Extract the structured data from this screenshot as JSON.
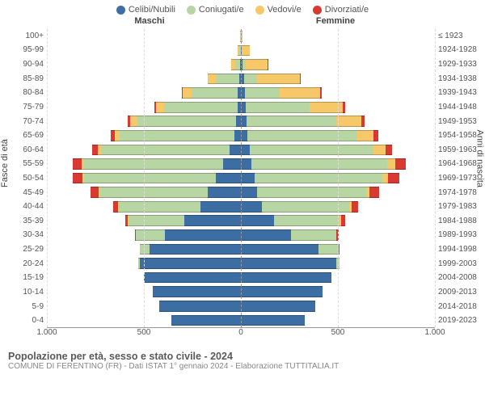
{
  "legend": [
    {
      "label": "Celibi/Nubili",
      "color": "#3d6ea3"
    },
    {
      "label": "Coniugati/e",
      "color": "#b8d6a4"
    },
    {
      "label": "Vedovi/e",
      "color": "#f6c86a"
    },
    {
      "label": "Divorziati/e",
      "color": "#d83a33"
    }
  ],
  "side_labels": {
    "m": "Maschi",
    "f": "Femmine"
  },
  "y_left_title": "Fasce di età",
  "y_right_title": "Anni di nascita",
  "age_groups": [
    "100+",
    "95-99",
    "90-94",
    "85-89",
    "80-84",
    "75-79",
    "70-74",
    "65-69",
    "60-64",
    "55-59",
    "50-54",
    "45-49",
    "40-44",
    "35-39",
    "30-34",
    "25-29",
    "20-24",
    "15-19",
    "10-14",
    "5-9",
    "0-4"
  ],
  "birth_years": [
    "≤ 1923",
    "1924-1928",
    "1929-1933",
    "1934-1938",
    "1939-1943",
    "1944-1948",
    "1949-1953",
    "1954-1958",
    "1959-1963",
    "1964-1968",
    "1969-1973",
    "1974-1978",
    "1979-1983",
    "1984-1988",
    "1989-1993",
    "1994-1998",
    "1999-2003",
    "2004-2008",
    "2009-2013",
    "2014-2018",
    "2019-2023"
  ],
  "x_ticks": [
    "1.000",
    "500",
    "0",
    "500",
    "1.000"
  ],
  "x_max": 1000,
  "colors": {
    "single": "#3d6ea3",
    "married": "#b8d6a4",
    "widowed": "#f6c86a",
    "divorced": "#d83a33",
    "grid": "#dddddd",
    "center": "#999999",
    "bg": "#ffffff"
  },
  "pyramid": [
    {
      "m": {
        "single": 0,
        "married": 0,
        "widowed": 3,
        "divorced": 0
      },
      "f": {
        "single": 2,
        "married": 0,
        "widowed": 8,
        "divorced": 0
      }
    },
    {
      "m": {
        "single": 2,
        "married": 5,
        "widowed": 10,
        "divorced": 0
      },
      "f": {
        "single": 3,
        "married": 3,
        "widowed": 40,
        "divorced": 0
      }
    },
    {
      "m": {
        "single": 5,
        "married": 25,
        "widowed": 20,
        "divorced": 0
      },
      "f": {
        "single": 8,
        "married": 18,
        "widowed": 110,
        "divorced": 2
      }
    },
    {
      "m": {
        "single": 10,
        "married": 120,
        "widowed": 40,
        "divorced": 3
      },
      "f": {
        "single": 15,
        "married": 70,
        "widowed": 220,
        "divorced": 5
      }
    },
    {
      "m": {
        "single": 15,
        "married": 240,
        "widowed": 45,
        "divorced": 5
      },
      "f": {
        "single": 20,
        "married": 180,
        "widowed": 210,
        "divorced": 8
      }
    },
    {
      "m": {
        "single": 18,
        "married": 380,
        "widowed": 40,
        "divorced": 10
      },
      "f": {
        "single": 25,
        "married": 330,
        "widowed": 170,
        "divorced": 12
      }
    },
    {
      "m": {
        "single": 25,
        "married": 510,
        "widowed": 35,
        "divorced": 15
      },
      "f": {
        "single": 30,
        "married": 460,
        "widowed": 130,
        "divorced": 18
      }
    },
    {
      "m": {
        "single": 35,
        "married": 590,
        "widowed": 25,
        "divorced": 20
      },
      "f": {
        "single": 35,
        "married": 560,
        "widowed": 90,
        "divorced": 25
      }
    },
    {
      "m": {
        "single": 60,
        "married": 660,
        "widowed": 18,
        "divorced": 30
      },
      "f": {
        "single": 45,
        "married": 640,
        "widowed": 60,
        "divorced": 35
      }
    },
    {
      "m": {
        "single": 90,
        "married": 720,
        "widowed": 12,
        "divorced": 45
      },
      "f": {
        "single": 55,
        "married": 700,
        "widowed": 40,
        "divorced": 55
      }
    },
    {
      "m": {
        "single": 130,
        "married": 680,
        "widowed": 8,
        "divorced": 50
      },
      "f": {
        "single": 70,
        "married": 660,
        "widowed": 28,
        "divorced": 60
      }
    },
    {
      "m": {
        "single": 170,
        "married": 560,
        "widowed": 5,
        "divorced": 40
      },
      "f": {
        "single": 85,
        "married": 560,
        "widowed": 18,
        "divorced": 50
      }
    },
    {
      "m": {
        "single": 210,
        "married": 420,
        "widowed": 3,
        "divorced": 25
      },
      "f": {
        "single": 110,
        "married": 450,
        "widowed": 10,
        "divorced": 35
      }
    },
    {
      "m": {
        "single": 290,
        "married": 290,
        "widowed": 2,
        "divorced": 15
      },
      "f": {
        "single": 170,
        "married": 340,
        "widowed": 6,
        "divorced": 20
      }
    },
    {
      "m": {
        "single": 390,
        "married": 150,
        "widowed": 0,
        "divorced": 8
      },
      "f": {
        "single": 260,
        "married": 230,
        "widowed": 3,
        "divorced": 12
      }
    },
    {
      "m": {
        "single": 470,
        "married": 50,
        "widowed": 0,
        "divorced": 2
      },
      "f": {
        "single": 400,
        "married": 105,
        "widowed": 0,
        "divorced": 5
      }
    },
    {
      "m": {
        "single": 520,
        "married": 8,
        "widowed": 0,
        "divorced": 0
      },
      "f": {
        "single": 490,
        "married": 20,
        "widowed": 0,
        "divorced": 0
      }
    },
    {
      "m": {
        "single": 500,
        "married": 0,
        "widowed": 0,
        "divorced": 0
      },
      "f": {
        "single": 465,
        "married": 0,
        "widowed": 0,
        "divorced": 0
      }
    },
    {
      "m": {
        "single": 455,
        "married": 0,
        "widowed": 0,
        "divorced": 0
      },
      "f": {
        "single": 420,
        "married": 0,
        "widowed": 0,
        "divorced": 0
      }
    },
    {
      "m": {
        "single": 420,
        "married": 0,
        "widowed": 0,
        "divorced": 0
      },
      "f": {
        "single": 385,
        "married": 0,
        "widowed": 0,
        "divorced": 0
      }
    },
    {
      "m": {
        "single": 360,
        "married": 0,
        "widowed": 0,
        "divorced": 0
      },
      "f": {
        "single": 330,
        "married": 0,
        "widowed": 0,
        "divorced": 0
      }
    }
  ],
  "footer": {
    "title": "Popolazione per età, sesso e stato civile - 2024",
    "subtitle": "COMUNE DI FERENTINO (FR) - Dati ISTAT 1° gennaio 2024 - Elaborazione TUTTITALIA.IT"
  }
}
